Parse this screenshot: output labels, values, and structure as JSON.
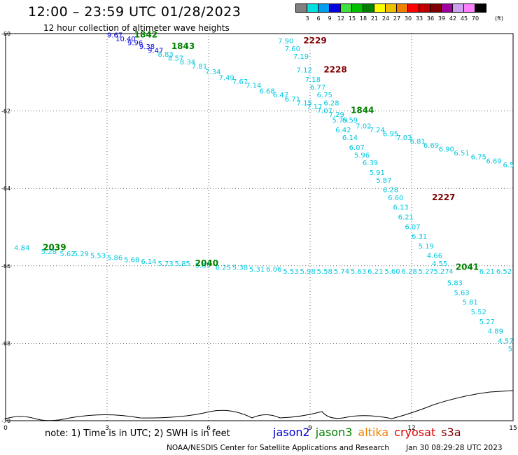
{
  "header": {
    "title": "12:00 – 23:59 UTC 01/28/2023",
    "subtitle": "12 hour collection of altimeter wave heights",
    "units_label": "(ft)"
  },
  "colorbar": [
    {
      "label": "3",
      "color": "#808080"
    },
    {
      "label": "6",
      "color": "#00e0e0"
    },
    {
      "label": "9",
      "color": "#00a0f0"
    },
    {
      "label": "12",
      "color": "#0000e0"
    },
    {
      "label": "15",
      "color": "#40e040"
    },
    {
      "label": "18",
      "color": "#00c000"
    },
    {
      "label": "21",
      "color": "#008000"
    },
    {
      "label": "24",
      "color": "#ffff00"
    },
    {
      "label": "27",
      "color": "#f0c000"
    },
    {
      "label": "30",
      "color": "#f08000"
    },
    {
      "label": "33",
      "color": "#ff0000"
    },
    {
      "label": "36",
      "color": "#c00000"
    },
    {
      "label": "39",
      "color": "#800000"
    },
    {
      "label": "42",
      "color": "#a000a0"
    },
    {
      "label": "45",
      "color": "#d0a0f0"
    },
    {
      "label": "70",
      "color": "#ff80ff"
    },
    {
      "label": "",
      "color": "#000000"
    }
  ],
  "axes": {
    "x_ticks": [
      "0",
      "3",
      "6",
      "9",
      "12",
      "15"
    ],
    "y_ticks": [
      "-60",
      "-62",
      "-64",
      "-66",
      "-68",
      "-70"
    ],
    "x_range": [
      0,
      15
    ],
    "y_range": [
      -60,
      -70
    ],
    "grid": true
  },
  "chart_data": {
    "type": "scatter",
    "tracks": [
      {
        "label": "1842",
        "label_color": "#008000",
        "label_lon": 3.8,
        "label_lat": -60.1,
        "points": [
          {
            "lon": 3.0,
            "lat": -60.1,
            "v": "9.67",
            "c": "#0000e0"
          },
          {
            "lon": 3.25,
            "lat": -60.2,
            "v": "10.40",
            "c": "#0000e0"
          },
          {
            "lon": 3.6,
            "lat": -60.3,
            "v": "9.96",
            "c": "#0000e0"
          },
          {
            "lon": 3.95,
            "lat": -60.4,
            "v": "9.38",
            "c": "#0000e0"
          },
          {
            "lon": 4.2,
            "lat": -60.5,
            "v": "9.47",
            "c": "#0000e0"
          }
        ]
      },
      {
        "label": "1843",
        "label_color": "#008000",
        "label_lon": 4.9,
        "label_lat": -60.4,
        "points": [
          {
            "lon": 4.5,
            "lat": -60.6,
            "v": "8.83",
            "c": "#00c8e0"
          },
          {
            "lon": 4.8,
            "lat": -60.7,
            "v": "8.57",
            "c": "#00c8e0"
          },
          {
            "lon": 5.15,
            "lat": -60.8,
            "v": "8.34",
            "c": "#00c8e0"
          },
          {
            "lon": 5.5,
            "lat": -60.9,
            "v": "7.81",
            "c": "#00c8e0"
          },
          {
            "lon": 5.9,
            "lat": -61.05,
            "v": "7.34",
            "c": "#00c8e0"
          },
          {
            "lon": 6.3,
            "lat": -61.2,
            "v": "7.49",
            "c": "#00c8e0"
          },
          {
            "lon": 6.7,
            "lat": -61.3,
            "v": "7.67",
            "c": "#00c8e0"
          },
          {
            "lon": 7.1,
            "lat": -61.4,
            "v": "7.14",
            "c": "#00c8e0"
          },
          {
            "lon": 7.5,
            "lat": -61.55,
            "v": "6.68",
            "c": "#00c8e0"
          },
          {
            "lon": 7.9,
            "lat": -61.65,
            "v": "6.47",
            "c": "#00c8e0"
          },
          {
            "lon": 8.25,
            "lat": -61.75,
            "v": "6.71",
            "c": "#00c8e0"
          },
          {
            "lon": 8.6,
            "lat": -61.85,
            "v": "7.15",
            "c": "#00c8e0"
          },
          {
            "lon": 8.9,
            "lat": -61.95,
            "v": "7.17",
            "c": "#00c8e0"
          },
          {
            "lon": 9.2,
            "lat": -62.05,
            "v": "7.07",
            "c": "#00c8e0"
          },
          {
            "lon": 9.55,
            "lat": -62.15,
            "v": "7.29",
            "c": "#00c8e0"
          },
          {
            "lon": 9.95,
            "lat": -62.3,
            "v": "6.59",
            "c": "#00c8e0"
          },
          {
            "lon": 10.35,
            "lat": -62.45,
            "v": "7.02",
            "c": "#00c8e0"
          },
          {
            "lon": 10.75,
            "lat": -62.55,
            "v": "7.24",
            "c": "#00c8e0"
          },
          {
            "lon": 11.15,
            "lat": -62.65,
            "v": "6.95",
            "c": "#00c8e0"
          },
          {
            "lon": 11.55,
            "lat": -62.75,
            "v": "7.03",
            "c": "#00c8e0"
          },
          {
            "lon": 11.95,
            "lat": -62.85,
            "v": "6.81",
            "c": "#00c8e0"
          },
          {
            "lon": 12.35,
            "lat": -62.95,
            "v": "6.69",
            "c": "#00c8e0"
          },
          {
            "lon": 12.8,
            "lat": -63.05,
            "v": "6.90",
            "c": "#00c8e0"
          },
          {
            "lon": 13.25,
            "lat": -63.15,
            "v": "6.51",
            "c": "#00c8e0"
          },
          {
            "lon": 13.75,
            "lat": -63.25,
            "v": "6.75",
            "c": "#00c8e0"
          },
          {
            "lon": 14.2,
            "lat": -63.35,
            "v": "6.69",
            "c": "#00c8e0"
          },
          {
            "lon": 14.7,
            "lat": -63.45,
            "v": "6.5",
            "c": "#00c8e0"
          }
        ]
      },
      {
        "label": "2229",
        "label_color": "#800000",
        "label_lon": 8.8,
        "label_lat": -60.25,
        "points": [
          {
            "lon": 8.05,
            "lat": -60.25,
            "v": "7.90",
            "c": "#00c8e0"
          },
          {
            "lon": 8.25,
            "lat": -60.45,
            "v": "7.60",
            "c": "#00c8e0"
          },
          {
            "lon": 8.5,
            "lat": -60.65,
            "v": "7.19",
            "c": "#00c8e0"
          }
        ]
      },
      {
        "label": "2228",
        "label_color": "#800000",
        "label_lon": 9.4,
        "label_lat": -61.0,
        "points": [
          {
            "lon": 8.6,
            "lat": -61.0,
            "v": "7.12",
            "c": "#00c8e0"
          },
          {
            "lon": 8.85,
            "lat": -61.25,
            "v": "7.18",
            "c": "#00c8e0"
          },
          {
            "lon": 9.0,
            "lat": -61.45,
            "v": "6.77",
            "c": "#00c8e0"
          },
          {
            "lon": 9.2,
            "lat": -61.65,
            "v": "6.75",
            "c": "#00c8e0"
          },
          {
            "lon": 9.4,
            "lat": -61.85,
            "v": "6.28",
            "c": "#00c8e0"
          },
          {
            "lon": 9.65,
            "lat": -62.3,
            "v": "5.79",
            "c": "#00c8e0"
          },
          {
            "lon": 9.75,
            "lat": -62.55,
            "v": "6.42",
            "c": "#00c8e0"
          },
          {
            "lon": 9.95,
            "lat": -62.75,
            "v": "6.14",
            "c": "#00c8e0"
          },
          {
            "lon": 10.15,
            "lat": -63.0,
            "v": "6.07",
            "c": "#00c8e0"
          },
          {
            "lon": 10.3,
            "lat": -63.2,
            "v": "5.96",
            "c": "#00c8e0"
          },
          {
            "lon": 10.55,
            "lat": -63.4,
            "v": "6.39",
            "c": "#00c8e0"
          },
          {
            "lon": 10.75,
            "lat": -63.65,
            "v": "5.91",
            "c": "#00c8e0"
          },
          {
            "lon": 10.95,
            "lat": -63.85,
            "v": "5.87",
            "c": "#00c8e0"
          },
          {
            "lon": 11.15,
            "lat": -64.1,
            "v": "6.28",
            "c": "#00c8e0"
          },
          {
            "lon": 11.3,
            "lat": -64.3,
            "v": "6.60",
            "c": "#00c8e0"
          }
        ]
      },
      {
        "label": "1844",
        "label_color": "#008000",
        "label_lon": 10.2,
        "label_lat": -62.05,
        "points": []
      },
      {
        "label": "2227",
        "label_color": "#800000",
        "label_lon": 12.6,
        "label_lat": -64.3,
        "points": [
          {
            "lon": 11.45,
            "lat": -64.55,
            "v": "6.13",
            "c": "#00c8e0"
          },
          {
            "lon": 11.6,
            "lat": -64.8,
            "v": "6.21",
            "c": "#00c8e0"
          },
          {
            "lon": 11.8,
            "lat": -65.05,
            "v": "6.07",
            "c": "#00c8e0"
          },
          {
            "lon": 12.0,
            "lat": -65.3,
            "v": "6.31",
            "c": "#00c8e0"
          },
          {
            "lon": 12.2,
            "lat": -65.55,
            "v": "5.19",
            "c": "#00c8e0"
          },
          {
            "lon": 12.45,
            "lat": -65.8,
            "v": "4.66",
            "c": "#00c8e0"
          },
          {
            "lon": 12.6,
            "lat": -66.0,
            "v": "4.55",
            "c": "#00c8e0"
          }
        ]
      },
      {
        "label": "2041",
        "label_color": "#008000",
        "label_lon": 13.3,
        "label_lat": -66.1,
        "points": [
          {
            "lon": 13.05,
            "lat": -66.5,
            "v": "5.83",
            "c": "#00c8e0"
          },
          {
            "lon": 13.25,
            "lat": -66.75,
            "v": "5.63",
            "c": "#00c8e0"
          },
          {
            "lon": 13.5,
            "lat": -67.0,
            "v": "5.81",
            "c": "#00c8e0"
          },
          {
            "lon": 13.75,
            "lat": -67.25,
            "v": "5.52",
            "c": "#00c8e0"
          },
          {
            "lon": 14.0,
            "lat": -67.5,
            "v": "5.27",
            "c": "#00c8e0"
          },
          {
            "lon": 14.25,
            "lat": -67.75,
            "v": "4.89",
            "c": "#00c8e0"
          },
          {
            "lon": 14.55,
            "lat": -68.0,
            "v": "4.57",
            "c": "#00c8e0"
          },
          {
            "lon": 14.85,
            "lat": -68.2,
            "v": "5",
            "c": "#00c8e0"
          }
        ]
      },
      {
        "label": "2039",
        "label_color": "#008000",
        "label_lon": 1.1,
        "label_lat": -65.6,
        "points": [
          {
            "lon": 0.25,
            "lat": -65.6,
            "v": "4.84",
            "c": "#00c8e0"
          },
          {
            "lon": 1.05,
            "lat": -65.7,
            "v": "5.28",
            "c": "#00c8e0"
          },
          {
            "lon": 1.6,
            "lat": -65.75,
            "v": "5.62",
            "c": "#00c8e0"
          },
          {
            "lon": 2.0,
            "lat": -65.75,
            "v": "5.29",
            "c": "#00c8e0"
          },
          {
            "lon": 2.5,
            "lat": -65.8,
            "v": "5.53",
            "c": "#00c8e0"
          },
          {
            "lon": 3.0,
            "lat": -65.85,
            "v": "5.86",
            "c": "#00c8e0"
          },
          {
            "lon": 3.5,
            "lat": -65.9,
            "v": "5.68",
            "c": "#00c8e0"
          },
          {
            "lon": 4.0,
            "lat": -65.95,
            "v": "6.14",
            "c": "#00c8e0"
          },
          {
            "lon": 4.5,
            "lat": -66.0,
            "v": "5.73",
            "c": "#00c8e0"
          },
          {
            "lon": 5.0,
            "lat": -66.0,
            "v": "5.85",
            "c": "#00c8e0"
          }
        ]
      },
      {
        "label": "2040",
        "label_color": "#008000",
        "label_lon": 5.6,
        "label_lat": -66.0,
        "points": [
          {
            "lon": 5.6,
            "lat": -66.05,
            "v": "5.85",
            "c": "#00c8e0"
          },
          {
            "lon": 6.2,
            "lat": -66.1,
            "v": "6.25",
            "c": "#00c8e0"
          },
          {
            "lon": 6.7,
            "lat": -66.1,
            "v": "5.38",
            "c": "#00c8e0"
          },
          {
            "lon": 7.2,
            "lat": -66.15,
            "v": "5.31",
            "c": "#00c8e0"
          },
          {
            "lon": 7.7,
            "lat": -66.15,
            "v": "6.06",
            "c": "#00c8e0"
          },
          {
            "lon": 8.2,
            "lat": -66.2,
            "v": "5.53",
            "c": "#00c8e0"
          },
          {
            "lon": 8.7,
            "lat": -66.2,
            "v": "5.98",
            "c": "#00c8e0"
          },
          {
            "lon": 9.2,
            "lat": -66.2,
            "v": "5.58",
            "c": "#00c8e0"
          },
          {
            "lon": 9.7,
            "lat": -66.2,
            "v": "5.74",
            "c": "#00c8e0"
          },
          {
            "lon": 10.2,
            "lat": -66.2,
            "v": "5.63",
            "c": "#00c8e0"
          },
          {
            "lon": 10.7,
            "lat": -66.2,
            "v": "6.21",
            "c": "#00c8e0"
          },
          {
            "lon": 11.2,
            "lat": -66.2,
            "v": "5.60",
            "c": "#00c8e0"
          },
          {
            "lon": 11.7,
            "lat": -66.2,
            "v": "6.28",
            "c": "#00c8e0"
          },
          {
            "lon": 12.2,
            "lat": -66.2,
            "v": "5.27",
            "c": "#00c8e0"
          },
          {
            "lon": 12.65,
            "lat": -66.2,
            "v": "5.27",
            "c": "#00c8e0"
          },
          {
            "lon": 13.1,
            "lat": -66.2,
            "v": "4",
            "c": "#00c8e0"
          },
          {
            "lon": 14.0,
            "lat": -66.2,
            "v": "6.21",
            "c": "#00c8e0"
          },
          {
            "lon": 14.5,
            "lat": -66.2,
            "v": "6.52",
            "c": "#00c8e0"
          }
        ]
      }
    ]
  },
  "note": "note: 1) Time is in UTC; 2) SWH is in feet",
  "satellites": [
    {
      "name": "jason2",
      "color": "#0000d0"
    },
    {
      "name": "jason3",
      "color": "#008000"
    },
    {
      "name": "altika",
      "color": "#f08000"
    },
    {
      "name": "cryosat",
      "color": "#e00000"
    },
    {
      "name": "s3a",
      "color": "#800000"
    }
  ],
  "footer": {
    "agency": "NOAA/NESDIS Center for Satellite Applications and Research",
    "timestamp": "Jan 30 08:29:28 UTC 2023"
  }
}
